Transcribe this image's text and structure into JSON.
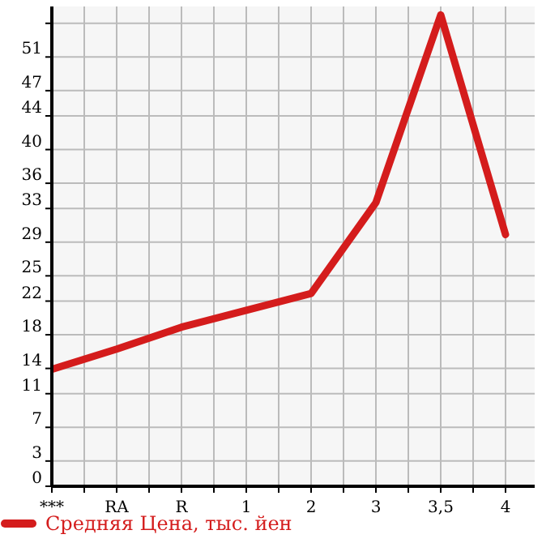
{
  "chart_data": {
    "type": "line",
    "categories": [
      "***",
      "RA",
      "R",
      "1",
      "2",
      "3",
      "3,5",
      "4"
    ],
    "series": [
      {
        "name": "Средняя Цена, тыс. йен",
        "color": "#d41c1c",
        "values": [
          13.9,
          16.3,
          18.9,
          20.9,
          22.9,
          33.7,
          56,
          29.9
        ]
      }
    ],
    "ylim": [
      0,
      57
    ],
    "yticks": [
      0,
      3,
      7,
      11,
      14,
      18,
      22,
      25,
      29,
      33,
      36,
      40,
      44,
      47,
      51,
      {
        "value": 55,
        "label": null
      }
    ],
    "grid": true,
    "legend": "bottom left",
    "line_style": "solid"
  }
}
